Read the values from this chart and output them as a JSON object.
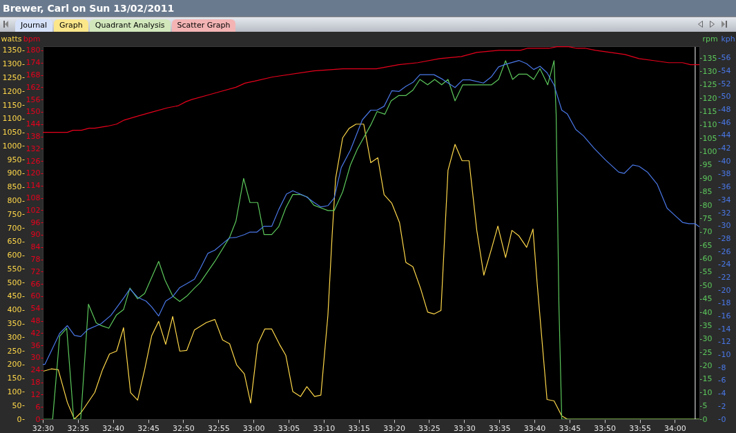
{
  "chart_data": [
    {
      "type": "line",
      "title": "Brewer, Carl on Sun 13/02/2011",
      "annotations": [
        "Journal",
        "Graph",
        "Quadrant Analysis",
        "Scatter Graph"
      ],
      "ylabel": "watts",
      "y2label": "rpm",
      "xlim": [
        1950,
        2043.5
      ],
      "xticks": [
        {
          "value": 1950,
          "label": "32:30"
        },
        {
          "value": 1955,
          "label": "32:35"
        },
        {
          "value": 1960,
          "label": "32:40"
        },
        {
          "value": 1965,
          "label": "32:45"
        },
        {
          "value": 1970,
          "label": "32:50"
        },
        {
          "value": 1975,
          "label": "32:55"
        },
        {
          "value": 1980,
          "label": "33:00"
        },
        {
          "value": 1985,
          "label": "33:05"
        },
        {
          "value": 1990,
          "label": "33:10"
        },
        {
          "value": 1995,
          "label": "33:15"
        },
        {
          "value": 2000,
          "label": "33:20"
        },
        {
          "value": 2005,
          "label": "33:25"
        },
        {
          "value": 2010,
          "label": "33:30"
        },
        {
          "value": 2015,
          "label": "33:35"
        },
        {
          "value": 2020,
          "label": "33:40"
        },
        {
          "value": 2025,
          "label": "33:45"
        },
        {
          "value": 2030,
          "label": "33:50"
        },
        {
          "value": 2035,
          "label": "33:55"
        },
        {
          "value": 2040,
          "label": "34:00"
        }
      ],
      "ylim": [
        0,
        1365
      ],
      "yticks": [
        0,
        50,
        100,
        150,
        200,
        250,
        300,
        350,
        400,
        450,
        500,
        550,
        600,
        650,
        700,
        750,
        800,
        850,
        900,
        950,
        1000,
        1050,
        1100,
        1150,
        1200,
        1250,
        1300,
        1350
      ],
      "y2lim": [
        0,
        139.4
      ],
      "y2ticks": [
        0,
        5,
        10,
        15,
        20,
        25,
        30,
        35,
        40,
        45,
        50,
        55,
        60,
        65,
        70,
        75,
        80,
        85,
        90,
        95,
        100,
        105,
        110,
        115,
        120,
        125,
        130,
        135
      ],
      "grid": false,
      "marker": "none",
      "ref_lines": [
        {
          "axis": "x",
          "value": 2042.9,
          "color": "#ffffff"
        }
      ],
      "series": [
        {
          "color": "#ffd84a",
          "x": [
            1950,
            1951.2,
            1952.2,
            1953.5,
            1954.5,
            1955.5,
            1957.4,
            1958.5,
            1959.5,
            1960.5,
            1961.5,
            1962.5,
            1963.5,
            1964.5,
            1965.5,
            1966.5,
            1967.5,
            1968.5,
            1969.5,
            1970.5,
            1971.6,
            1973.3,
            1974.5,
            1975.6,
            1976.6,
            1977.6,
            1978.7,
            1979.6,
            1980.6,
            1981.6,
            1982.6,
            1983.7,
            1984.6,
            1985.6,
            1986.7,
            1987.6,
            1988.7,
            1989.6,
            1990.6,
            1991.2,
            1991.7,
            1992.7,
            1993.6,
            1994.6,
            1995.7,
            1996.7,
            1997.7,
            1998.6,
            1999.7,
            2000.8,
            2001.7,
            2002.7,
            2003.8,
            2004.8,
            2005.7,
            2006.7,
            2007.7,
            2008.7,
            2009.7,
            2010.7,
            2011.8,
            2012.8,
            2013.9,
            2014.8,
            2015.9,
            2016.8,
            2017.8,
            2018.9,
            2019.8,
            2020.4,
            2021.8,
            2022.8,
            2023.9,
            2024.7,
            2043.5
          ],
          "values": [
            175,
            184,
            181,
            61,
            0,
            26,
            98,
            181,
            239,
            249,
            335,
            97,
            70,
            181,
            305,
            358,
            274,
            376,
            249,
            252,
            327,
            354,
            365,
            290,
            276,
            199,
            166,
            59,
            274,
            330,
            330,
            274,
            234,
            101,
            83,
            119,
            83,
            88,
            381,
            673,
            882,
            1030,
            1064,
            1080,
            1080,
            939,
            957,
            822,
            790,
            719,
            574,
            558,
            478,
            392,
            385,
            398,
            911,
            1006,
            946,
            946,
            691,
            527,
            624,
            707,
            592,
            691,
            671,
            629,
            696,
            496,
            72,
            67,
            12,
            0,
            0
          ]
        },
        {
          "color": "#5cc85c",
          "axis": "y2",
          "x": [
            1950,
            1951.4,
            1952.4,
            1953.4,
            1954.4,
            1955.4,
            1956.5,
            1957.6,
            1958.3,
            1959.4,
            1960.5,
            1961.5,
            1962.4,
            1963.5,
            1964.5,
            1965.5,
            1966.5,
            1967.4,
            1968.5,
            1969.5,
            1970.5,
            1971.6,
            1972.4,
            1974.5,
            1976.6,
            1977.5,
            1978.6,
            1979.5,
            1980.6,
            1981.5,
            1982.6,
            1983.6,
            1984.6,
            1985.6,
            1986.7,
            1987.7,
            1988.6,
            1989.6,
            1990.6,
            1991.5,
            1992.7,
            1993.8,
            1994.8,
            1996.7,
            1997.6,
            1998.7,
            1999.6,
            2000.7,
            2001.7,
            2002.7,
            2003.7,
            2004.8,
            2005.8,
            2006.8,
            2007.7,
            2008.7,
            2009.8,
            2013.9,
            2014.9,
            2015.9,
            2016.9,
            2017.8,
            2018.9,
            2019.9,
            2020.8,
            2021.9,
            2022.8,
            2023.1,
            2023.5,
            2023.9,
            2043.5
          ],
          "values": [
            0,
            0,
            31,
            34,
            0,
            0,
            43,
            36,
            35,
            34,
            39,
            41,
            49,
            45,
            47,
            53,
            59,
            52,
            46,
            44,
            46,
            49,
            51,
            59,
            68,
            74,
            90,
            81,
            81,
            69,
            69,
            72,
            79,
            84,
            84,
            83,
            80,
            79,
            78,
            78,
            85,
            95,
            101,
            110,
            115,
            114,
            119,
            121,
            121,
            123,
            127,
            125,
            127,
            125,
            127,
            119,
            125,
            125,
            127,
            134,
            127,
            129,
            129,
            127,
            131,
            125,
            134,
            114,
            42,
            0,
            0
          ]
        }
      ]
    },
    {
      "type": "line",
      "tick_labels": "y",
      "ylabel": "bpm",
      "y2label": "kph",
      "xlim": [
        1950,
        2043.5
      ],
      "ylim": [
        0,
        182
      ],
      "yticks": [
        0,
        6,
        12,
        18,
        24,
        30,
        36,
        42,
        48,
        54,
        60,
        66,
        72,
        78,
        84,
        90,
        96,
        102,
        108,
        114,
        120,
        126,
        132,
        138,
        144,
        150,
        156,
        162,
        168,
        174,
        180
      ],
      "y2lim": [
        0,
        57.8
      ],
      "y2ticks": [
        0,
        2,
        4,
        6,
        8,
        10,
        12,
        14,
        16,
        18,
        20,
        22,
        24,
        26,
        28,
        30,
        32,
        34,
        36,
        38,
        40,
        42,
        44,
        46,
        48,
        50,
        52,
        54,
        56
      ],
      "grid": false,
      "marker": "none",
      "series": [
        {
          "color": "#e8001c",
          "x": [
            1950,
            1953.5,
            1954.3,
            1955.5,
            1956.6,
            1957.4,
            1959.2,
            1960.5,
            1961.6,
            1963.6,
            1965.7,
            1967.8,
            1969.3,
            1970.4,
            1971.2,
            1973.3,
            1975.4,
            1977.5,
            1978.8,
            1980.2,
            1982.7,
            1988.6,
            1992.7,
            1997.5,
            2000.7,
            2003.4,
            2006.5,
            2009.6,
            2011.8,
            2014.9,
            2018,
            2019,
            2022.1,
            2023.2,
            2024.9,
            2026,
            2027.3,
            2028.7,
            2030.8,
            2032.9,
            2034.9,
            2037,
            2039.1,
            2041.1,
            2042.2,
            2043.5
          ],
          "values": [
            140,
            140,
            141,
            141,
            142,
            142,
            143,
            144,
            146,
            148,
            150,
            152,
            153,
            155,
            156,
            158,
            160,
            162,
            164,
            165,
            167,
            170,
            171,
            171,
            173,
            174,
            176,
            177,
            179,
            180,
            180,
            181,
            181,
            181.8,
            181.8,
            181,
            181,
            180,
            179,
            178,
            176,
            175,
            174,
            174,
            173,
            173
          ]
        },
        {
          "color": "#4a78e8",
          "axis": "y2",
          "x": [
            1950,
            1950.3,
            1952.4,
            1953.5,
            1954.5,
            1955.4,
            1956.4,
            1958.3,
            1959.7,
            1961.6,
            1962.4,
            1963.5,
            1964.7,
            1965.5,
            1966.5,
            1967.5,
            1968.5,
            1969.5,
            1970.5,
            1971.6,
            1972.4,
            1973.5,
            1974.5,
            1975.6,
            1976.6,
            1977.6,
            1978.7,
            1979.5,
            1980.5,
            1981.5,
            1982.6,
            1983.6,
            1984.7,
            1985.6,
            1987.5,
            1988.6,
            1989.6,
            1990.6,
            1991.5,
            1992.5,
            1993.8,
            1995.5,
            1996.7,
            1997.6,
            1998.6,
            1999.7,
            2000.7,
            2001.7,
            2002.7,
            2003.7,
            2005.7,
            2006.9,
            2008.7,
            2009.8,
            2010.8,
            2012.75,
            2013.9,
            2014.9,
            2015.9,
            2017.8,
            2018.9,
            2019.9,
            2020.8,
            2021.8,
            2022.8,
            2023.9,
            2024.7,
            2025.9,
            2027,
            2028.5,
            2030.1,
            2032,
            2032.8,
            2034,
            2034.9,
            2036.1,
            2037.5,
            2038.9,
            2039.9,
            2041.1,
            2042,
            2042.9,
            2043.5
          ],
          "values": [
            8.5,
            8.5,
            13.3,
            14.5,
            13.0,
            12.8,
            13.9,
            14.8,
            16.1,
            18.9,
            20.2,
            18.9,
            18.3,
            17.4,
            16.0,
            18.3,
            19.0,
            20.4,
            21.0,
            21.7,
            23.3,
            25.7,
            26.2,
            27.2,
            28.1,
            28.2,
            28.6,
            29.0,
            29.0,
            29.9,
            29.9,
            32.5,
            34.9,
            35.4,
            34.5,
            33.6,
            32.9,
            33.1,
            34.3,
            39.0,
            41.7,
            46.4,
            47.9,
            47.9,
            48.5,
            50.9,
            50.8,
            51.6,
            52.2,
            53.4,
            53.4,
            52.7,
            51.4,
            52.6,
            52.6,
            52.1,
            53.1,
            54.6,
            55.0,
            55.6,
            55.1,
            54.2,
            54.7,
            53.7,
            51.8,
            47.9,
            47.3,
            44.9,
            43.9,
            42.0,
            40.2,
            38.3,
            38.1,
            39.4,
            39.2,
            38.3,
            36.4,
            32.7,
            31.7,
            30.5,
            30.3,
            30.3,
            29.8
          ]
        }
      ]
    }
  ]
}
